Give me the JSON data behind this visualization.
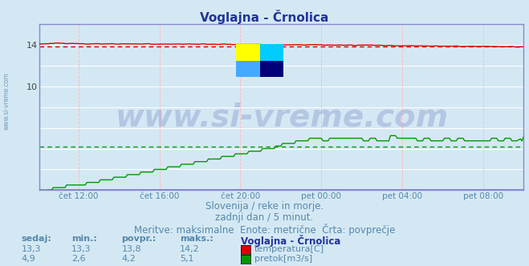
{
  "title": "Voglajna - Črnolica",
  "background_color": "#d4e8f4",
  "plot_bg_color": "#d4e8f4",
  "grid_h_color": "#ffffff",
  "grid_v_color": "#ffbbbb",
  "x_labels": [
    "čet 12:00",
    "čet 16:00",
    "čet 20:00",
    "pet 00:00",
    "pet 04:00",
    "pet 08:00"
  ],
  "x_ticks_frac": [
    0.0833,
    0.25,
    0.4167,
    0.5833,
    0.75,
    0.9167
  ],
  "ylim": [
    0,
    16.0
  ],
  "ytick_vals": [
    10,
    14
  ],
  "temp_color": "#dd0000",
  "flow_color": "#009900",
  "height_color": "#7777cc",
  "border_color": "#8888cc",
  "avg_temp_color": "#dd0000",
  "avg_flow_color": "#009900",
  "watermark_text": "www.si-vreme.com",
  "watermark_color": "#223399",
  "watermark_alpha": 0.18,
  "watermark_fontsize": 28,
  "subtitle1": "Slovenija / reke in morje.",
  "subtitle2": "zadnji dan / 5 minut.",
  "subtitle3": "Meritve: maksimalne  Enote: metrične  Črta: povprečje",
  "subtitle_color": "#5588aa",
  "subtitle_fontsize": 8.5,
  "table_headers": [
    "sedaj:",
    "min.:",
    "povpr.:",
    "maks.:",
    "Voglajna - Črnolica"
  ],
  "row1_vals": [
    "13,3",
    "13,3",
    "13,8",
    "14,2"
  ],
  "row1_label": "temperatura[C]",
  "row1_color": "#dd0000",
  "row2_vals": [
    "4,9",
    "2,6",
    "4,2",
    "5,1"
  ],
  "row2_label": "pretok[m3/s]",
  "row2_color": "#009900",
  "table_color": "#5588aa",
  "table_header_color": "#5588aa",
  "station_color": "#223399",
  "n_points": 288,
  "avg_temp": 13.8,
  "avg_flow": 4.2,
  "title_color": "#223399",
  "title_fontsize": 11,
  "left_label": "www.si-vreme.com",
  "left_label_color": "#5588aa"
}
